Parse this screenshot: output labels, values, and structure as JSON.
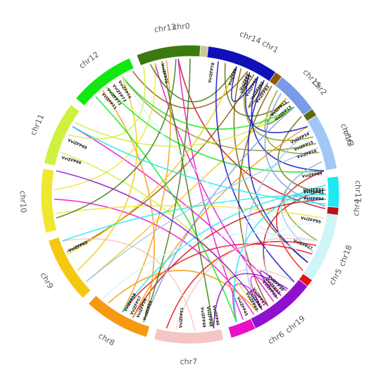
{
  "diagram": {
    "type": "circos",
    "chromosomes": [
      {
        "name": "chr0",
        "color": "#c7c79a",
        "start": -20,
        "end": 14
      },
      {
        "name": "chr1",
        "color": "#8b5a0a",
        "start": 17,
        "end": 40
      },
      {
        "name": "chr2",
        "color": "#5b6c10",
        "start": 43,
        "end": 58
      },
      {
        "name": "chr3",
        "color": "#8e962a",
        "start": 61,
        "end": 80
      },
      {
        "name": "chr4",
        "color": "#c0101a",
        "start": 83,
        "end": 106
      },
      {
        "name": "chr5",
        "color": "#e81010",
        "start": 108,
        "end": 131
      },
      {
        "name": "chr6",
        "color": "#e810c8",
        "start": 134,
        "end": 164
      },
      {
        "name": "chr7",
        "color": "#f5c5c5",
        "start": 167,
        "end": 194
      },
      {
        "name": "chr8",
        "color": "#f59a10",
        "start": 197,
        "end": 223
      },
      {
        "name": "chr9",
        "color": "#f5c810",
        "start": 226,
        "end": 252
      },
      {
        "name": "chr10",
        "color": "#f0e830",
        "start": 255,
        "end": 280
      },
      {
        "name": "chr11",
        "color": "#d0f040",
        "start": 282,
        "end": 307
      },
      {
        "name": "chr12",
        "color": "#10e810",
        "start": 310,
        "end": 336
      },
      {
        "name": "chr13",
        "color": "#3c7a10",
        "start": 339,
        "end": 364
      },
      {
        "name": "chr14",
        "color": "#1010b8",
        "start": 367,
        "end": 395
      },
      {
        "name": "chr15",
        "color": "#7a9ae8",
        "start": 398,
        "end": 415
      },
      {
        "name": "chr16",
        "color": "#a0c8f5",
        "start": 418,
        "end": 440
      },
      {
        "name": "chr17",
        "color": "#20e8f0",
        "start": 443,
        "end": 455
      },
      {
        "name": "chr18",
        "color": "#d0f5f8",
        "start": 458,
        "end": 485
      },
      {
        "name": "chr19",
        "color": "#9010d0",
        "start": 488,
        "end": 514
      }
    ],
    "genes": [
      {
        "label": "VviZFP1",
        "angle": 20
      },
      {
        "label": "VviZFP4",
        "angle": 26
      },
      {
        "label": "VviZFP11",
        "angle": 46
      },
      {
        "label": "VviZFP13",
        "angle": 49
      },
      {
        "label": "VviZFP14",
        "angle": 63
      },
      {
        "label": "VviZFP15",
        "angle": 67
      },
      {
        "label": "VviZFP16",
        "angle": 71
      },
      {
        "label": "VviZFP21",
        "angle": 89
      },
      {
        "label": "VviZFP27",
        "angle": 114
      },
      {
        "label": "VviZFP30",
        "angle": 136
      },
      {
        "label": "VviZFP32",
        "angle": 138
      },
      {
        "label": "VviZFP33",
        "angle": 140
      },
      {
        "label": "VviZFP41",
        "angle": 146
      },
      {
        "label": "VviZFP42",
        "angle": 148
      },
      {
        "label": "VviZFP43",
        "angle": 150
      },
      {
        "label": "VviZFP45",
        "angle": 155
      },
      {
        "label": "VviZFP46",
        "angle": 168
      },
      {
        "label": "VviZFP48",
        "angle": 171
      },
      {
        "label": "VviZFP49",
        "angle": 174
      },
      {
        "label": "VviZFP51",
        "angle": 184
      },
      {
        "label": "VviZFP55",
        "angle": 200
      },
      {
        "label": "VviZFP56",
        "angle": 203
      },
      {
        "label": "VviZFP57",
        "angle": 206
      },
      {
        "label": "VviZFP58",
        "angle": 209
      },
      {
        "label": "VviZFP65",
        "angle": 245
      },
      {
        "label": "VviZFP66",
        "angle": 286
      },
      {
        "label": "VviZFP69",
        "angle": 294
      },
      {
        "label": "VviZFP71",
        "angle": 319
      },
      {
        "label": "VviZFP72",
        "angle": 322
      },
      {
        "label": "VviZFP73",
        "angle": 325
      },
      {
        "label": "VviZFP74",
        "angle": 328
      },
      {
        "label": "VviZFP75",
        "angle": 348
      },
      {
        "label": "VviZFP78",
        "angle": 370
      },
      {
        "label": "VviZFP79",
        "angle": 387
      },
      {
        "label": "VviZFP81",
        "angle": 390
      },
      {
        "label": "VviZFP82",
        "angle": 393
      },
      {
        "label": "VviZFP83",
        "angle": 396
      },
      {
        "label": "VviZFP89",
        "angle": 441
      },
      {
        "label": "VviZFP93",
        "angle": 448
      },
      {
        "label": "VviZFP94",
        "angle": 452
      },
      {
        "label": "VviZFP95",
        "angle": 462
      }
    ],
    "links": [
      {
        "a": 22,
        "b": 120,
        "color": "#8b5a0a"
      },
      {
        "a": 25,
        "b": 335,
        "color": "#8b5a0a"
      },
      {
        "a": 28,
        "b": 245,
        "color": "#8b5a0a"
      },
      {
        "a": 33,
        "b": 395,
        "color": "#8b5a0a"
      },
      {
        "a": 37,
        "b": 145,
        "color": "#8b5a0a"
      },
      {
        "a": 47,
        "b": 375,
        "color": "#5b6c10"
      },
      {
        "a": 50,
        "b": 405,
        "color": "#5b6c10"
      },
      {
        "a": 55,
        "b": 450,
        "color": "#5b6c10"
      },
      {
        "a": 65,
        "b": 385,
        "color": "#8e962a"
      },
      {
        "a": 68,
        "b": 330,
        "color": "#8e962a"
      },
      {
        "a": 72,
        "b": 400,
        "color": "#8e962a"
      },
      {
        "a": 76,
        "b": 470,
        "color": "#8e962a"
      },
      {
        "a": 88,
        "b": 140,
        "color": "#c0101a"
      },
      {
        "a": 92,
        "b": 205,
        "color": "#c0101a"
      },
      {
        "a": 96,
        "b": 355,
        "color": "#c0101a"
      },
      {
        "a": 112,
        "b": 190,
        "color": "#e81010"
      },
      {
        "a": 116,
        "b": 210,
        "color": "#e81010"
      },
      {
        "a": 124,
        "b": 440,
        "color": "#e81010"
      },
      {
        "a": 138,
        "b": 300,
        "color": "#e810c8"
      },
      {
        "a": 142,
        "b": 345,
        "color": "#e810c8"
      },
      {
        "a": 148,
        "b": 498,
        "color": "#e810c8"
      },
      {
        "a": 152,
        "b": 268,
        "color": "#e810c8"
      },
      {
        "a": 157,
        "b": 355,
        "color": "#e810c8"
      },
      {
        "a": 160,
        "b": 505,
        "color": "#e810c8"
      },
      {
        "a": 170,
        "b": 490,
        "color": "#f5c5c5"
      },
      {
        "a": 178,
        "b": 250,
        "color": "#f5c5c5"
      },
      {
        "a": 186,
        "b": 470,
        "color": "#f5c5c5"
      },
      {
        "a": 200,
        "b": 320,
        "color": "#f59a10"
      },
      {
        "a": 205,
        "b": 60,
        "color": "#f59a10"
      },
      {
        "a": 210,
        "b": 350,
        "color": "#f59a10"
      },
      {
        "a": 217,
        "b": 150,
        "color": "#f59a10"
      },
      {
        "a": 230,
        "b": 45,
        "color": "#f5c810"
      },
      {
        "a": 236,
        "b": 330,
        "color": "#f5c810"
      },
      {
        "a": 244,
        "b": 20,
        "color": "#f5c810"
      },
      {
        "a": 262,
        "b": 100,
        "color": "#f0e830"
      },
      {
        "a": 272,
        "b": 345,
        "color": "#f0e830"
      },
      {
        "a": 288,
        "b": 150,
        "color": "#d0f040"
      },
      {
        "a": 296,
        "b": 340,
        "color": "#d0f040"
      },
      {
        "a": 302,
        "b": 50,
        "color": "#d0f040"
      },
      {
        "a": 316,
        "b": 160,
        "color": "#10e810"
      },
      {
        "a": 322,
        "b": 80,
        "color": "#10e810"
      },
      {
        "a": 330,
        "b": 410,
        "color": "#10e810"
      },
      {
        "a": 343,
        "b": 20,
        "color": "#3c7a10"
      },
      {
        "a": 348,
        "b": 170,
        "color": "#3c7a10"
      },
      {
        "a": 354,
        "b": 260,
        "color": "#3c7a10"
      },
      {
        "a": 360,
        "b": 200,
        "color": "#3c7a10"
      },
      {
        "a": 372,
        "b": 130,
        "color": "#1010b8"
      },
      {
        "a": 380,
        "b": 30,
        "color": "#1010b8"
      },
      {
        "a": 386,
        "b": 420,
        "color": "#1010b8"
      },
      {
        "a": 390,
        "b": 440,
        "color": "#1010b8"
      },
      {
        "a": 393,
        "b": 480,
        "color": "#1010b8"
      },
      {
        "a": 402,
        "b": 95,
        "color": "#7a9ae8"
      },
      {
        "a": 410,
        "b": 200,
        "color": "#7a9ae8"
      },
      {
        "a": 422,
        "b": 150,
        "color": "#a0c8f5"
      },
      {
        "a": 430,
        "b": 230,
        "color": "#a0c8f5"
      },
      {
        "a": 436,
        "b": 115,
        "color": "#a0c8f5"
      },
      {
        "a": 446,
        "b": 160,
        "color": "#20e8f0"
      },
      {
        "a": 448,
        "b": 210,
        "color": "#20e8f0"
      },
      {
        "a": 450,
        "b": 250,
        "color": "#20e8f0"
      },
      {
        "a": 452,
        "b": 90,
        "color": "#20e8f0"
      },
      {
        "a": 454,
        "b": 300,
        "color": "#20e8f0"
      },
      {
        "a": 462,
        "b": 140,
        "color": "#d0f5f8"
      },
      {
        "a": 470,
        "b": 220,
        "color": "#d0f5f8"
      },
      {
        "a": 478,
        "b": 330,
        "color": "#d0f5f8"
      },
      {
        "a": 494,
        "b": 170,
        "color": "#9010d0"
      },
      {
        "a": 500,
        "b": 135,
        "color": "#9010d0"
      },
      {
        "a": 508,
        "b": 280,
        "color": "#9010d0"
      }
    ]
  }
}
